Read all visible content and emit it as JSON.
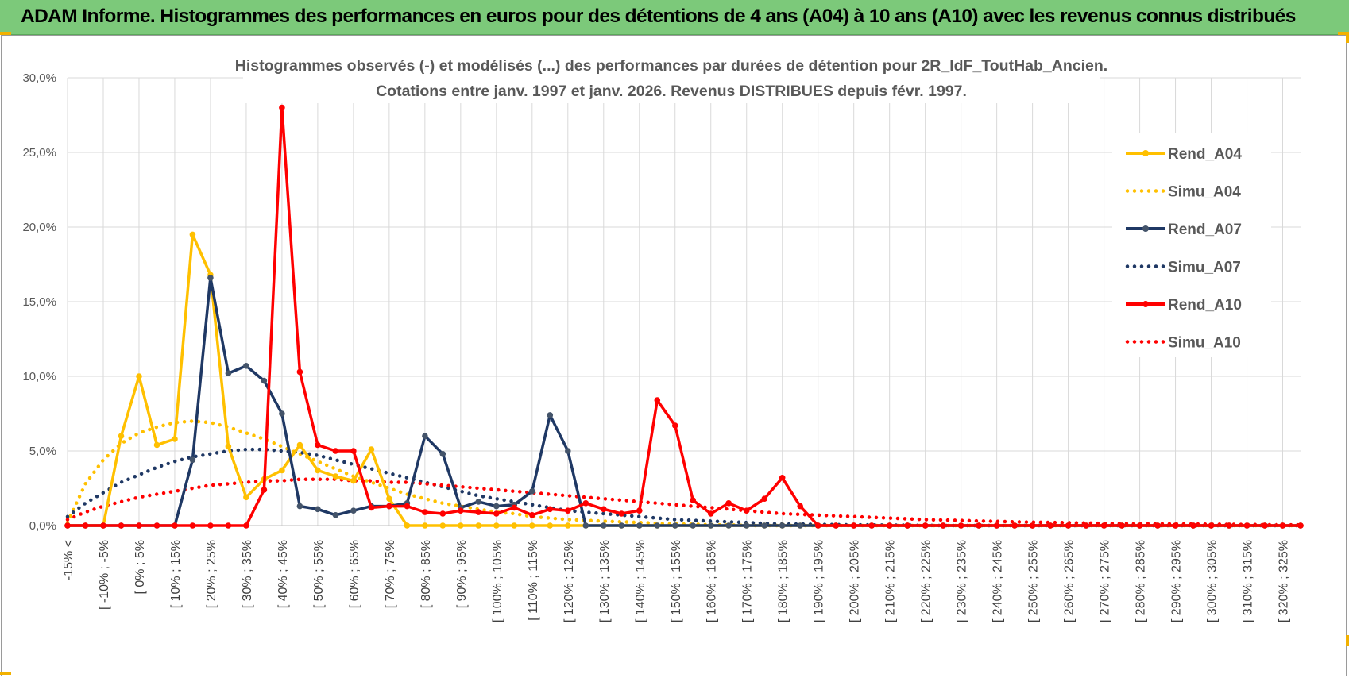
{
  "banner": {
    "title": "ADAM Informe. Histogrammes des performances en euros pour des détentions de 4 ans (A04) à 10 ans (A10) avec les revenus connus distribués"
  },
  "colors": {
    "banner_bg": "#7cc97a",
    "A04": "#FFC000",
    "A07": "#1F3864",
    "A10": "#FF0000",
    "grid": "#d9d9d9",
    "axis": "#bfbfbf"
  },
  "chart_data": {
    "type": "line",
    "title": "Histogrammes observés (-) et modélisés (...) des performances par durées de détention pour 2R_IdF_ToutHab_Ancien.",
    "subtitle": "Cotations entre janv. 1997 et janv. 2026. Revenus DISTRIBUES depuis févr. 1997.",
    "ylim": [
      0,
      30
    ],
    "yticks": [
      "0,0%",
      "5,0%",
      "10,0%",
      "15,0%",
      "20,0%",
      "25,0%",
      "30,0%"
    ],
    "y_unit": "%",
    "grid": true,
    "legend_position": "right",
    "x_tick_labels": [
      "-15% <",
      "[ -10% ; -5%",
      "[ 0% ; 5%",
      "[ 10% ; 15%",
      "[ 20% ; 25%",
      "[ 30% ; 35%",
      "[ 40% ; 45%",
      "[ 50% ; 55%",
      "[ 60% ; 65%",
      "[ 70% ; 75%",
      "[ 80% ; 85%",
      "[ 90% ; 95%",
      "[ 100% ; 105%",
      "[ 110% ; 115%",
      "[ 120% ; 125%",
      "[ 130% ; 135%",
      "[ 140% ; 145%",
      "[ 150% ; 155%",
      "[ 160% ; 165%",
      "[ 170% ; 175%",
      "[ 180% ; 185%",
      "[ 190% ; 195%",
      "[ 200% ; 205%",
      "[ 210% ; 215%",
      "[ 220% ; 225%",
      "[ 230% ; 235%",
      "[ 240% ; 245%",
      "[ 250% ; 255%",
      "[ 260% ; 265%",
      "[ 270% ; 275%",
      "[ 280% ; 285%",
      "[ 290% ; 295%",
      "[ 300% ; 305%",
      "[ 310% ; 315%",
      "[ 320% ; 325%"
    ],
    "series": [
      {
        "name": "Rend_A04",
        "style": "solid",
        "color": "#FFC000",
        "values": [
          0,
          0,
          0,
          6,
          10,
          5.4,
          5.8,
          19.5,
          16.8,
          5.3,
          1.9,
          3.1,
          3.7,
          5.4,
          3.7,
          3.3,
          3,
          5.1,
          1.8,
          0,
          0,
          0,
          0,
          0,
          0,
          0,
          0,
          0,
          0,
          0,
          0,
          0,
          0,
          0,
          0,
          0,
          0,
          0,
          0,
          0,
          0,
          0,
          0,
          0,
          0,
          0,
          0,
          0,
          0,
          0,
          0,
          0,
          0,
          0,
          0,
          0,
          0,
          0,
          0,
          0,
          0,
          0,
          0,
          0,
          0,
          0,
          0,
          0,
          0,
          0
        ]
      },
      {
        "name": "Simu_A04",
        "style": "dotted",
        "color": "#FFC000",
        "values": [
          0.2,
          2.8,
          4.4,
          5.5,
          6.2,
          6.6,
          6.9,
          7,
          6.9,
          6.6,
          6.2,
          5.8,
          5.3,
          4.8,
          4.3,
          3.8,
          3.3,
          2.9,
          2.5,
          2.1,
          1.8,
          1.5,
          1.3,
          1.1,
          0.9,
          0.8,
          0.6,
          0.5,
          0.4,
          0.35,
          0.3,
          0.25,
          0.2,
          0.15,
          0.1,
          0.1,
          0.05,
          0.05,
          0,
          0,
          0,
          0,
          0,
          0,
          0,
          0,
          0,
          0,
          0,
          0,
          0,
          0,
          0,
          0,
          0,
          0,
          0,
          0,
          0,
          0,
          0,
          0,
          0,
          0,
          0,
          0,
          0,
          0,
          0,
          0
        ]
      },
      {
        "name": "Rend_A07",
        "style": "solid",
        "color": "#1F3864",
        "values": [
          0,
          0,
          0,
          0,
          0,
          0,
          0,
          4.4,
          16.6,
          10.2,
          10.7,
          9.7,
          7.5,
          1.3,
          1.1,
          0.7,
          1,
          1.3,
          1.3,
          1.5,
          6,
          4.8,
          1.2,
          1.6,
          1.3,
          1.4,
          2.3,
          7.4,
          5,
          0,
          0,
          0,
          0,
          0,
          0,
          0,
          0,
          0,
          0,
          0,
          0,
          0,
          0,
          0,
          0,
          0,
          0,
          0,
          0,
          0,
          0,
          0,
          0,
          0,
          0,
          0,
          0,
          0,
          0,
          0,
          0,
          0,
          0,
          0,
          0,
          0,
          0,
          0,
          0,
          0
        ]
      },
      {
        "name": "Simu_A07",
        "style": "dotted",
        "color": "#1F3864",
        "values": [
          0.6,
          1.5,
          2.2,
          2.9,
          3.4,
          3.9,
          4.3,
          4.6,
          4.8,
          5,
          5.1,
          5.1,
          5,
          4.9,
          4.7,
          4.4,
          4.1,
          3.8,
          3.5,
          3.2,
          2.9,
          2.6,
          2.3,
          2,
          1.8,
          1.6,
          1.4,
          1.2,
          1,
          0.9,
          0.8,
          0.7,
          0.6,
          0.5,
          0.4,
          0.35,
          0.3,
          0.25,
          0.2,
          0.15,
          0.1,
          0.1,
          0.08,
          0.06,
          0.05,
          0.04,
          0.03,
          0.02,
          0.01,
          0,
          0,
          0,
          0,
          0,
          0,
          0,
          0,
          0,
          0,
          0,
          0,
          0,
          0,
          0,
          0,
          0,
          0,
          0,
          0,
          0
        ]
      },
      {
        "name": "Rend_A10",
        "style": "solid",
        "color": "#FF0000",
        "values": [
          0,
          0,
          0,
          0,
          0,
          0,
          0,
          0,
          0,
          0,
          0,
          2.4,
          28,
          10.3,
          5.4,
          5,
          5,
          1.2,
          1.3,
          1.3,
          0.9,
          0.8,
          1,
          0.9,
          0.8,
          1.2,
          0.7,
          1.1,
          1,
          1.5,
          1.1,
          0.8,
          1,
          8.4,
          6.7,
          1.7,
          0.8,
          1.5,
          1,
          1.8,
          3.2,
          1.3,
          0,
          0,
          0,
          0,
          0,
          0,
          0,
          0,
          0,
          0,
          0,
          0,
          0,
          0,
          0,
          0,
          0,
          0,
          0,
          0,
          0,
          0,
          0,
          0,
          0,
          0,
          0,
          0
        ]
      },
      {
        "name": "Simu_A10",
        "style": "dotted",
        "color": "#FF0000",
        "values": [
          0.4,
          0.9,
          1.3,
          1.6,
          1.9,
          2.1,
          2.3,
          2.5,
          2.7,
          2.8,
          2.9,
          3,
          3,
          3.1,
          3.1,
          3.1,
          3,
          3,
          2.9,
          2.9,
          2.8,
          2.7,
          2.6,
          2.5,
          2.4,
          2.3,
          2.2,
          2.1,
          2,
          1.9,
          1.8,
          1.7,
          1.6,
          1.5,
          1.4,
          1.3,
          1.2,
          1.1,
          1,
          0.9,
          0.8,
          0.75,
          0.7,
          0.65,
          0.6,
          0.55,
          0.5,
          0.45,
          0.4,
          0.37,
          0.34,
          0.31,
          0.28,
          0.25,
          0.23,
          0.21,
          0.19,
          0.17,
          0.15,
          0.14,
          0.13,
          0.12,
          0.11,
          0.1,
          0.09,
          0.08,
          0.07,
          0.06,
          0.05,
          0.04
        ]
      }
    ]
  }
}
